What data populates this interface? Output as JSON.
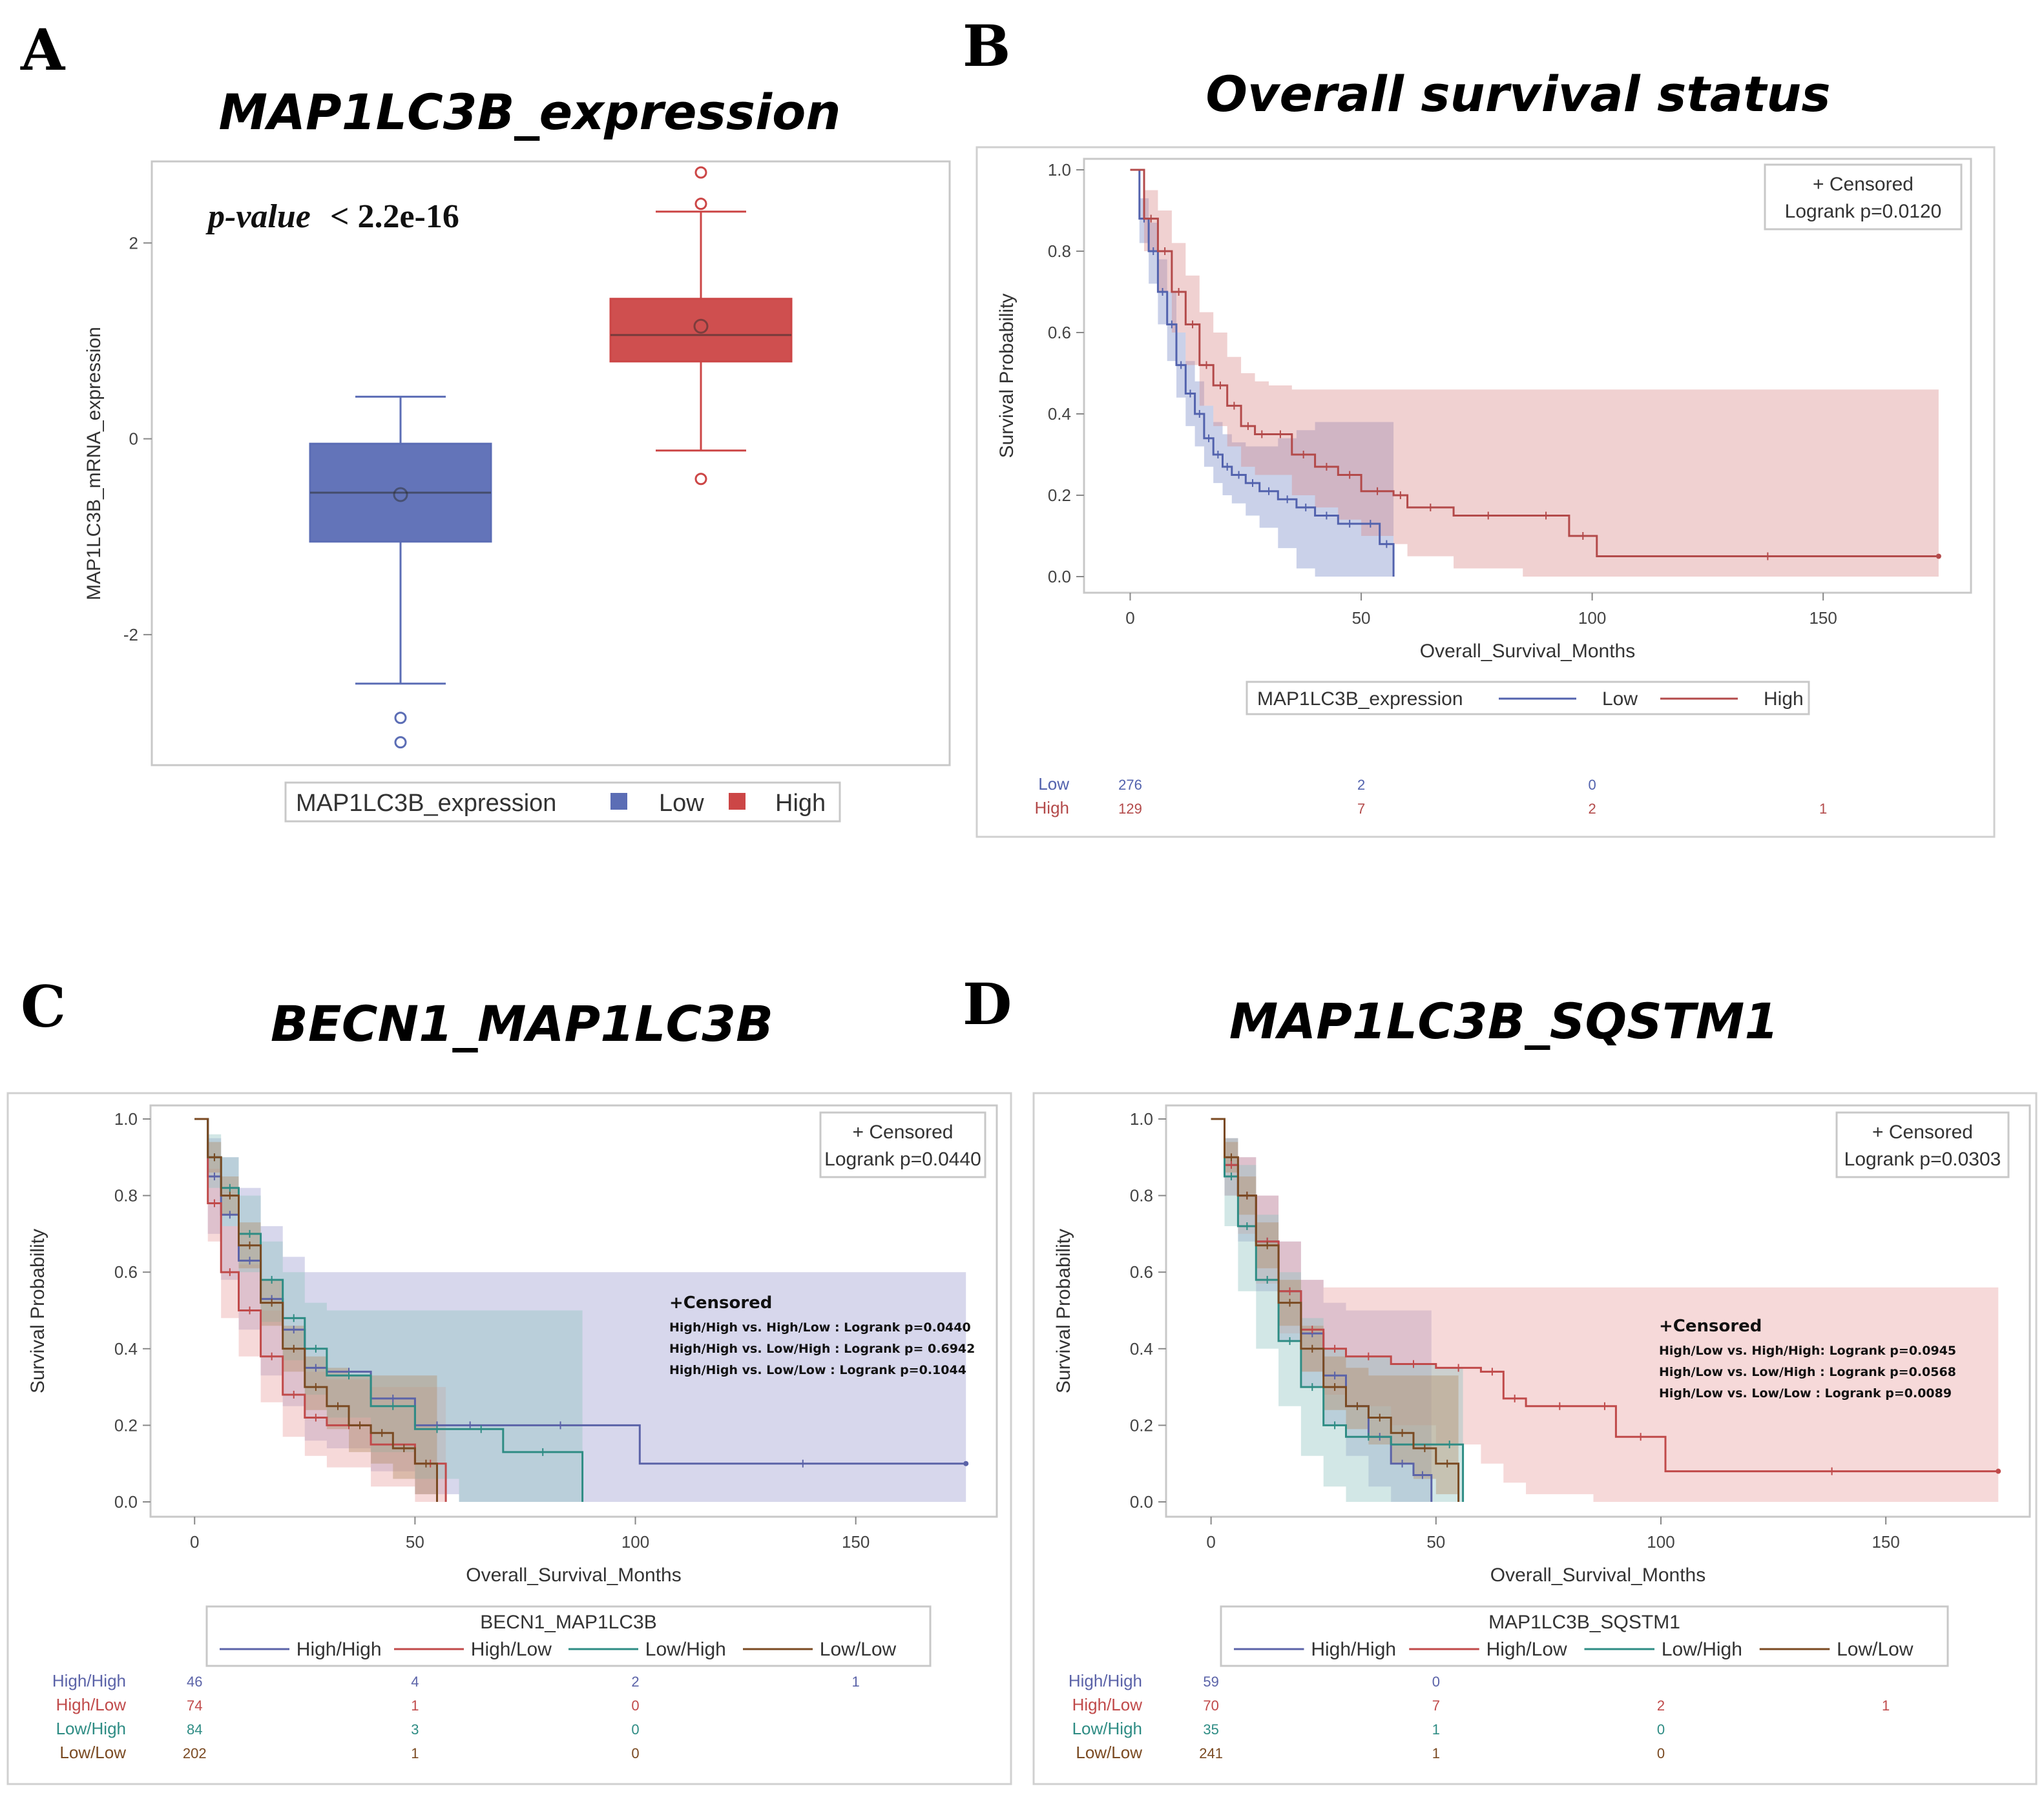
{
  "chart_data": [
    {
      "type": "box",
      "panel": "A",
      "title": "MAP1LC3B_expression",
      "ylabel": "MAP1LC3B_mRNA_expression",
      "ylim": [
        -3.3,
        2.8
      ],
      "yticks": [
        2,
        0,
        -2
      ],
      "note_italic": "p-value",
      "note_text": "< 2.2e-16",
      "legend_title": "MAP1LC3B_expression",
      "groups": [
        {
          "name": "Low",
          "color": "#5b6db5",
          "q1": -1.05,
          "median": -0.55,
          "q3": -0.05,
          "mean": -0.57,
          "whisker_low": -2.5,
          "whisker_high": 0.43,
          "outliers": [
            -2.85,
            -3.1
          ]
        },
        {
          "name": "High",
          "color": "#cc4646",
          "q1": 0.79,
          "median": 1.06,
          "q3": 1.43,
          "mean": 1.15,
          "whisker_low": -0.12,
          "whisker_high": 2.32,
          "outliers": [
            2.72,
            2.4,
            -0.41
          ]
        }
      ]
    },
    {
      "type": "line",
      "panel": "B",
      "title": "Overall survival status",
      "xlabel": "Overall_Survival_Months",
      "ylabel": "Survival Probability",
      "xlim": [
        -10,
        182
      ],
      "ylim": [
        0,
        1
      ],
      "xticks": [
        0,
        50,
        100,
        150
      ],
      "yticks": [
        "0.0",
        "0.2",
        "0.4",
        "0.6",
        "0.8",
        "1.0"
      ],
      "inset_censored": "+ Censored",
      "inset_logrank": "Logrank p=0.0120",
      "legend_title": "MAP1LC3B_expression",
      "series": [
        {
          "name": "Low",
          "color": "#5262ad",
          "fill": "#7b8bc7",
          "x": [
            0,
            2,
            4,
            6,
            8,
            10,
            12,
            14,
            16,
            18,
            20,
            22,
            25,
            28,
            32,
            36,
            40,
            45,
            50,
            54,
            57
          ],
          "y": [
            1.0,
            0.88,
            0.8,
            0.7,
            0.62,
            0.52,
            0.45,
            0.4,
            0.34,
            0.3,
            0.27,
            0.25,
            0.23,
            0.21,
            0.19,
            0.17,
            0.15,
            0.13,
            0.13,
            0.08,
            0.0
          ],
          "lower": [
            1.0,
            0.82,
            0.72,
            0.62,
            0.53,
            0.44,
            0.37,
            0.32,
            0.27,
            0.23,
            0.2,
            0.18,
            0.15,
            0.12,
            0.07,
            0.02,
            0.0,
            0.0,
            0.0,
            0.0,
            0.0
          ],
          "upper": [
            1.0,
            0.93,
            0.87,
            0.78,
            0.7,
            0.6,
            0.53,
            0.48,
            0.42,
            0.38,
            0.35,
            0.33,
            0.32,
            0.32,
            0.34,
            0.36,
            0.38,
            0.38,
            0.38,
            0.38,
            0.38
          ]
        },
        {
          "name": "High",
          "color": "#b34a4a",
          "fill": "#d98c8c",
          "x": [
            0,
            3,
            6,
            9,
            12,
            15,
            18,
            21,
            24,
            27,
            30,
            35,
            40,
            45,
            50,
            57,
            60,
            70,
            85,
            95,
            101,
            175
          ],
          "y": [
            1.0,
            0.88,
            0.8,
            0.7,
            0.62,
            0.52,
            0.47,
            0.42,
            0.37,
            0.35,
            0.35,
            0.3,
            0.27,
            0.25,
            0.21,
            0.2,
            0.17,
            0.15,
            0.15,
            0.1,
            0.05,
            0.05
          ],
          "lower": [
            1.0,
            0.8,
            0.7,
            0.6,
            0.52,
            0.42,
            0.37,
            0.32,
            0.27,
            0.25,
            0.25,
            0.2,
            0.17,
            0.14,
            0.1,
            0.08,
            0.05,
            0.02,
            0.0,
            0.0,
            0.0,
            0.0
          ],
          "upper": [
            1.0,
            0.95,
            0.9,
            0.82,
            0.74,
            0.65,
            0.6,
            0.54,
            0.5,
            0.48,
            0.47,
            0.46,
            0.46,
            0.46,
            0.46,
            0.46,
            0.46,
            0.46,
            0.46,
            0.46,
            0.46,
            0.46
          ]
        }
      ],
      "risk_table": {
        "times": [
          0,
          50,
          100,
          150
        ],
        "rows": [
          {
            "label": "Low",
            "color": "#5262ad",
            "values": [
              "276",
              "2",
              "0",
              ""
            ]
          },
          {
            "label": "High",
            "color": "#b34a4a",
            "values": [
              "129",
              "7",
              "2",
              "1"
            ]
          }
        ]
      }
    },
    {
      "type": "line",
      "panel": "C",
      "title": "BECN1_MAP1LC3B",
      "xlabel": "Overall_Survival_Months",
      "ylabel": "Survival Probability",
      "xlim": [
        -10,
        182
      ],
      "ylim": [
        0,
        1
      ],
      "xticks": [
        0,
        50,
        100,
        150
      ],
      "yticks": [
        "0.0",
        "0.2",
        "0.4",
        "0.6",
        "0.8",
        "1.0"
      ],
      "inset_censored": "+ Censored",
      "inset_logrank": "Logrank p=0.0440",
      "annotation_title": "+Censored",
      "annotations": [
        "High/High vs. High/Low : Logrank p=0.0440",
        "High/High vs. Low/High : Logrank p= 0.6942",
        "High/High vs. Low/Low : Logrank p=0.1044"
      ],
      "legend_title": "BECN1_MAP1LC3B",
      "series": [
        {
          "name": "High/High",
          "color": "#5b63a8",
          "fill": "#9a9cd0",
          "x": [
            0,
            3,
            6,
            10,
            15,
            20,
            25,
            30,
            40,
            50,
            60,
            65,
            101,
            175
          ],
          "y": [
            1.0,
            0.85,
            0.75,
            0.63,
            0.53,
            0.45,
            0.35,
            0.34,
            0.27,
            0.2,
            0.2,
            0.2,
            0.1,
            0.1
          ],
          "lower": [
            1.0,
            0.7,
            0.58,
            0.45,
            0.33,
            0.25,
            0.16,
            0.14,
            0.08,
            0.02,
            0.0,
            0.0,
            0.0,
            0.0
          ],
          "upper": [
            1.0,
            0.95,
            0.9,
            0.82,
            0.72,
            0.64,
            0.6,
            0.6,
            0.6,
            0.6,
            0.6,
            0.6,
            0.6,
            0.6
          ]
        },
        {
          "name": "High/Low",
          "color": "#c04a4a",
          "fill": "#e8a0a0",
          "x": [
            0,
            3,
            6,
            10,
            15,
            20,
            25,
            30,
            40,
            50,
            57
          ],
          "y": [
            1.0,
            0.78,
            0.6,
            0.5,
            0.38,
            0.28,
            0.22,
            0.2,
            0.15,
            0.1,
            0.0
          ],
          "lower": [
            1.0,
            0.68,
            0.48,
            0.38,
            0.26,
            0.17,
            0.12,
            0.09,
            0.04,
            0.0,
            0.0
          ],
          "upper": [
            1.0,
            0.87,
            0.72,
            0.62,
            0.5,
            0.4,
            0.34,
            0.32,
            0.3,
            0.3,
            0.3
          ]
        },
        {
          "name": "Low/High",
          "color": "#2e8c84",
          "fill": "#8fc4c0",
          "x": [
            0,
            3,
            6,
            10,
            15,
            20,
            25,
            30,
            40,
            50,
            60,
            70,
            88
          ],
          "y": [
            1.0,
            0.9,
            0.82,
            0.7,
            0.58,
            0.48,
            0.4,
            0.33,
            0.25,
            0.19,
            0.19,
            0.13,
            0.0
          ],
          "lower": [
            1.0,
            0.82,
            0.72,
            0.6,
            0.47,
            0.37,
            0.28,
            0.22,
            0.13,
            0.06,
            0.0,
            0.0,
            0.0
          ],
          "upper": [
            1.0,
            0.96,
            0.9,
            0.8,
            0.68,
            0.6,
            0.52,
            0.5,
            0.5,
            0.5,
            0.5,
            0.5,
            0.5
          ]
        },
        {
          "name": "Low/Low",
          "color": "#7a4a22",
          "fill": "#b48c64",
          "x": [
            0,
            3,
            6,
            10,
            15,
            20,
            25,
            30,
            35,
            40,
            45,
            50,
            55
          ],
          "y": [
            1.0,
            0.9,
            0.8,
            0.67,
            0.52,
            0.4,
            0.3,
            0.25,
            0.2,
            0.18,
            0.14,
            0.1,
            0.0
          ],
          "lower": [
            1.0,
            0.86,
            0.75,
            0.61,
            0.46,
            0.34,
            0.24,
            0.19,
            0.13,
            0.1,
            0.06,
            0.02,
            0.0
          ],
          "upper": [
            1.0,
            0.94,
            0.85,
            0.73,
            0.58,
            0.46,
            0.38,
            0.35,
            0.33,
            0.33,
            0.33,
            0.33,
            0.33
          ]
        }
      ],
      "risk_table": {
        "times": [
          0,
          50,
          100,
          150
        ],
        "rows": [
          {
            "label": "High/High",
            "color": "#5b63a8",
            "values": [
              "46",
              "4",
              "2",
              "1"
            ]
          },
          {
            "label": "High/Low",
            "color": "#c04a4a",
            "values": [
              "74",
              "1",
              "0",
              ""
            ]
          },
          {
            "label": "Low/High",
            "color": "#2e8c84",
            "values": [
              "84",
              "3",
              "0",
              ""
            ]
          },
          {
            "label": "Low/Low",
            "color": "#7a4a22",
            "values": [
              "202",
              "1",
              "0",
              ""
            ]
          }
        ]
      }
    },
    {
      "type": "line",
      "panel": "D",
      "title": "MAP1LC3B_SQSTM1",
      "xlabel": "Overall_Survival_Months",
      "ylabel": "Survival Probability",
      "xlim": [
        -10,
        182
      ],
      "ylim": [
        0,
        1
      ],
      "xticks": [
        0,
        50,
        100,
        150
      ],
      "yticks": [
        "0.0",
        "0.2",
        "0.4",
        "0.6",
        "0.8",
        "1.0"
      ],
      "inset_censored": "+ Censored",
      "inset_logrank": "Logrank p=0.0303",
      "annotation_title": "+Censored",
      "annotations": [
        "High/Low vs. High/High: Logrank p=0.0945",
        "High/Low vs. Low/High : Logrank p=0.0568",
        "High/Low vs. Low/Low : Logrank p=0.0089"
      ],
      "legend_title": "MAP1LC3B_SQSTM1",
      "series": [
        {
          "name": "High/High",
          "color": "#5b63a8",
          "fill": "#9a9cd0",
          "x": [
            0,
            3,
            6,
            10,
            15,
            20,
            25,
            30,
            35,
            40,
            45,
            49
          ],
          "y": [
            1.0,
            0.88,
            0.8,
            0.68,
            0.55,
            0.44,
            0.33,
            0.25,
            0.17,
            0.1,
            0.07,
            0.0
          ],
          "lower": [
            1.0,
            0.8,
            0.68,
            0.55,
            0.42,
            0.3,
            0.2,
            0.12,
            0.04,
            0.0,
            0.0,
            0.0
          ],
          "upper": [
            1.0,
            0.95,
            0.9,
            0.8,
            0.68,
            0.58,
            0.52,
            0.5,
            0.5,
            0.5,
            0.5,
            0.5
          ]
        },
        {
          "name": "High/Low",
          "color": "#c04a4a",
          "fill": "#e8a0a0",
          "x": [
            0,
            3,
            6,
            10,
            15,
            20,
            25,
            30,
            40,
            50,
            60,
            65,
            70,
            85,
            90,
            101,
            175
          ],
          "y": [
            1.0,
            0.88,
            0.8,
            0.68,
            0.55,
            0.45,
            0.4,
            0.38,
            0.36,
            0.35,
            0.34,
            0.27,
            0.25,
            0.25,
            0.17,
            0.08,
            0.08
          ],
          "lower": [
            1.0,
            0.8,
            0.7,
            0.57,
            0.44,
            0.34,
            0.28,
            0.25,
            0.2,
            0.15,
            0.1,
            0.05,
            0.02,
            0.0,
            0.0,
            0.0,
            0.0
          ],
          "upper": [
            1.0,
            0.95,
            0.9,
            0.8,
            0.68,
            0.58,
            0.56,
            0.56,
            0.56,
            0.56,
            0.56,
            0.56,
            0.56,
            0.56,
            0.56,
            0.56,
            0.56
          ]
        },
        {
          "name": "Low/High",
          "color": "#2e8c84",
          "fill": "#8fc4c0",
          "x": [
            0,
            3,
            6,
            10,
            15,
            20,
            25,
            30,
            40,
            50,
            56
          ],
          "y": [
            1.0,
            0.85,
            0.72,
            0.58,
            0.42,
            0.3,
            0.2,
            0.17,
            0.15,
            0.15,
            0.0
          ],
          "lower": [
            1.0,
            0.72,
            0.55,
            0.4,
            0.25,
            0.12,
            0.04,
            0.0,
            0.0,
            0.0,
            0.0
          ],
          "upper": [
            1.0,
            0.95,
            0.88,
            0.75,
            0.6,
            0.48,
            0.4,
            0.38,
            0.36,
            0.35,
            0.35
          ]
        },
        {
          "name": "Low/Low",
          "color": "#7a4a22",
          "fill": "#b48c64",
          "x": [
            0,
            3,
            6,
            10,
            15,
            20,
            25,
            30,
            35,
            40,
            45,
            50,
            55
          ],
          "y": [
            1.0,
            0.9,
            0.8,
            0.67,
            0.52,
            0.4,
            0.3,
            0.25,
            0.22,
            0.18,
            0.14,
            0.1,
            0.0
          ],
          "lower": [
            1.0,
            0.86,
            0.75,
            0.61,
            0.46,
            0.34,
            0.24,
            0.19,
            0.15,
            0.1,
            0.06,
            0.02,
            0.0
          ],
          "upper": [
            1.0,
            0.94,
            0.85,
            0.73,
            0.58,
            0.46,
            0.38,
            0.35,
            0.33,
            0.33,
            0.33,
            0.33,
            0.33
          ]
        }
      ],
      "risk_table": {
        "times": [
          0,
          50,
          100,
          150
        ],
        "rows": [
          {
            "label": "High/High",
            "color": "#5b63a8",
            "values": [
              "59",
              "0",
              "",
              ""
            ]
          },
          {
            "label": "High/Low",
            "color": "#c04a4a",
            "values": [
              "70",
              "7",
              "2",
              "1"
            ]
          },
          {
            "label": "Low/High",
            "color": "#2e8c84",
            "values": [
              "35",
              "1",
              "0",
              ""
            ]
          },
          {
            "label": "Low/Low",
            "color": "#7a4a22",
            "values": [
              "241",
              "1",
              "0",
              ""
            ]
          }
        ]
      }
    }
  ]
}
